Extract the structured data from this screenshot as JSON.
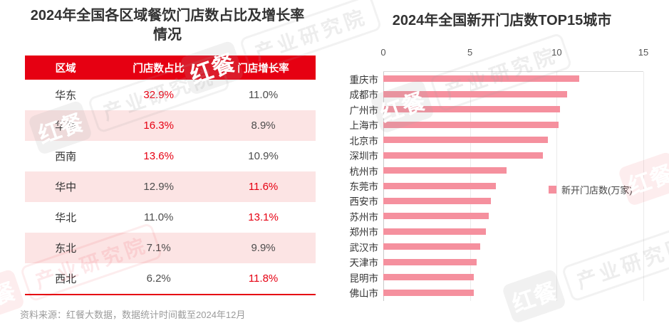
{
  "left_panel": {
    "title_line1": "2024年全国各区域餐饮门店数占比及增长率",
    "title_line2": "情况",
    "table": {
      "headers": [
        "区域",
        "门店数占比",
        "门店增长率"
      ],
      "rows": [
        {
          "region": "华东",
          "share": "32.9%",
          "share_highlight": true,
          "growth": "11.0%",
          "growth_highlight": false
        },
        {
          "region": "华南",
          "share": "16.3%",
          "share_highlight": true,
          "growth": "8.9%",
          "growth_highlight": false
        },
        {
          "region": "西南",
          "share": "13.6%",
          "share_highlight": true,
          "growth": "10.9%",
          "growth_highlight": false
        },
        {
          "region": "华中",
          "share": "12.9%",
          "share_highlight": false,
          "growth": "11.6%",
          "growth_highlight": true
        },
        {
          "region": "华北",
          "share": "11.0%",
          "share_highlight": false,
          "growth": "13.1%",
          "growth_highlight": true
        },
        {
          "region": "东北",
          "share": "7.1%",
          "share_highlight": false,
          "growth": "9.9%",
          "growth_highlight": false
        },
        {
          "region": "西北",
          "share": "6.2%",
          "share_highlight": false,
          "growth": "11.8%",
          "growth_highlight": true
        }
      ]
    }
  },
  "right_panel": {
    "title": "2024年全国新开门店数TOP15城市",
    "legend_label": "新开门店数(万家)"
  },
  "chart_data": {
    "type": "bar",
    "orientation": "horizontal",
    "title": "2024年全国新开门店数TOP15城市",
    "categories": [
      "重庆市",
      "成都市",
      "广州市",
      "上海市",
      "北京市",
      "深圳市",
      "杭州市",
      "东莞市",
      "西安市",
      "苏州市",
      "郑州市",
      "武汉市",
      "天津市",
      "昆明市",
      "佛山市"
    ],
    "values": [
      11.3,
      10.6,
      10.2,
      10.1,
      9.5,
      9.2,
      7.1,
      6.5,
      6.2,
      6.1,
      5.9,
      5.6,
      5.4,
      5.2,
      5.2
    ],
    "xlabel": "",
    "ylabel": "",
    "xlim": [
      0,
      15
    ],
    "x_ticks": [
      0,
      5,
      10,
      15
    ],
    "legend": [
      "新开门店数(万家)"
    ],
    "legend_position": "right",
    "grid": true,
    "bar_color": "#F5909E"
  },
  "source_note": "资料来源：红餐大数据，数据统计时间截至2024年12月",
  "watermark": {
    "brand": "红餐",
    "label": "产业研究院"
  },
  "colors": {
    "accent_red": "#E60012",
    "row_pink": "#FCE4E4",
    "bar_pink": "#F5909E",
    "text_dark": "#333333",
    "text_gray": "#4D4D4D",
    "source_gray": "#9B9B9B"
  }
}
